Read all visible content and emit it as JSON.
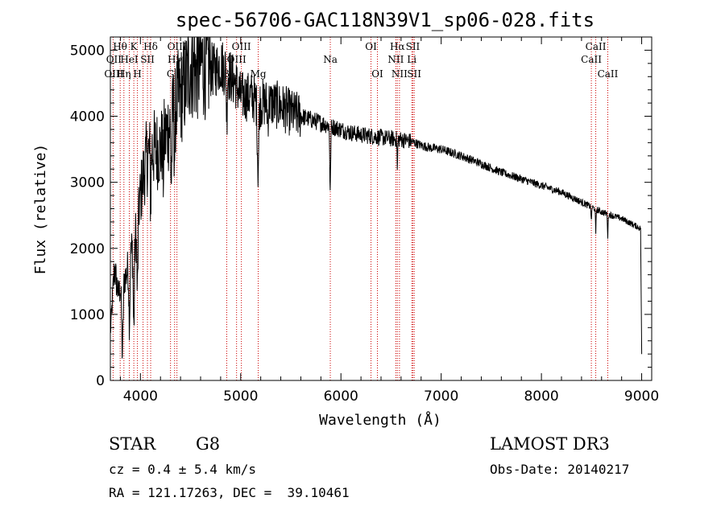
{
  "chart_data": {
    "type": "line",
    "title": "spec-56706-GAC118N39V1_sp06-028.fits",
    "xlabel": "Wavelength (Å)",
    "ylabel": "Flux (relative)",
    "xlim": [
      3700,
      9100
    ],
    "ylim": [
      0,
      5200
    ],
    "x_ticks": [
      4000,
      5000,
      6000,
      7000,
      8000,
      9000
    ],
    "y_ticks": [
      0,
      1000,
      2000,
      3000,
      4000,
      5000
    ],
    "continuum": {
      "x": [
        3700,
        3740,
        3780,
        3820,
        3860,
        3900,
        3950,
        4000,
        4050,
        4100,
        4150,
        4200,
        4250,
        4300,
        4350,
        4400,
        4450,
        4500,
        4550,
        4600,
        4650,
        4700,
        4750,
        4800,
        4850,
        4900,
        4950,
        5000,
        5100,
        5200,
        5300,
        5400,
        5500,
        5600,
        5700,
        5800,
        5900,
        6000,
        6100,
        6200,
        6300,
        6400,
        6500,
        6600,
        6700,
        6800,
        6900,
        7000,
        7200,
        7400,
        7600,
        7800,
        8000,
        8200,
        8400,
        8600,
        8800,
        8990
      ],
      "y": [
        700,
        1700,
        1300,
        1500,
        1600,
        1900,
        2200,
        2800,
        3300,
        3500,
        3500,
        3500,
        3700,
        3900,
        4200,
        4300,
        4500,
        4800,
        4700,
        4800,
        4800,
        4700,
        4700,
        4800,
        4700,
        4600,
        4500,
        4300,
        4300,
        4200,
        4200,
        4150,
        4050,
        4000,
        3950,
        3900,
        3850,
        3800,
        3750,
        3720,
        3700,
        3680,
        3660,
        3650,
        3620,
        3560,
        3520,
        3500,
        3400,
        3280,
        3150,
        3050,
        2950,
        2850,
        2700,
        2550,
        2450,
        2300
      ]
    },
    "absorption_features": [
      {
        "x": 3820,
        "depth": 1100,
        "width": 10
      },
      {
        "x": 3890,
        "depth": 900,
        "width": 8
      },
      {
        "x": 3934,
        "depth": 1300,
        "width": 8
      },
      {
        "x": 3970,
        "depth": 1100,
        "width": 8
      },
      {
        "x": 4102,
        "depth": 800,
        "width": 6
      },
      {
        "x": 4227,
        "depth": 500,
        "width": 5
      },
      {
        "x": 4308,
        "depth": 900,
        "width": 8
      },
      {
        "x": 4341,
        "depth": 700,
        "width": 6
      },
      {
        "x": 4861,
        "depth": 700,
        "width": 6
      },
      {
        "x": 5173,
        "depth": 1000,
        "width": 10
      },
      {
        "x": 5270,
        "depth": 300,
        "width": 6
      },
      {
        "x": 5893,
        "depth": 1000,
        "width": 6
      },
      {
        "x": 6563,
        "depth": 500,
        "width": 4
      },
      {
        "x": 8498,
        "depth": 250,
        "width": 4
      },
      {
        "x": 8542,
        "depth": 400,
        "width": 4
      },
      {
        "x": 8662,
        "depth": 350,
        "width": 4
      }
    ],
    "line_markers": [
      3727,
      3798,
      3835,
      3889,
      3934,
      3970,
      4026,
      4070,
      4102,
      4300,
      4341,
      4364,
      4861,
      4959,
      5007,
      5175,
      5894,
      6300,
      6364,
      6548,
      6563,
      6584,
      6707,
      6717,
      6731,
      8498,
      8542,
      8662
    ],
    "line_labels": [
      {
        "text": "Hθ",
        "x": 3797,
        "row": 1
      },
      {
        "text": "K",
        "x": 3934,
        "row": 1
      },
      {
        "text": "Hδ",
        "x": 4102,
        "row": 1
      },
      {
        "text": "OIII",
        "x": 4364,
        "row": 1
      },
      {
        "text": "OIII",
        "x": 5007,
        "row": 1
      },
      {
        "text": "OI",
        "x": 6300,
        "row": 1
      },
      {
        "text": "Hα",
        "x": 6563,
        "row": 1
      },
      {
        "text": "SII",
        "x": 6717,
        "row": 1
      },
      {
        "text": "CaII",
        "x": 8542,
        "row": 1
      },
      {
        "text": "OII",
        "x": 3735,
        "row": 2
      },
      {
        "text": "HeI",
        "x": 3889,
        "row": 2
      },
      {
        "text": "SII",
        "x": 4070,
        "row": 2
      },
      {
        "text": "Hγ",
        "x": 4341,
        "row": 2
      },
      {
        "text": "OIII",
        "x": 4959,
        "row": 2
      },
      {
        "text": "Na",
        "x": 5894,
        "row": 2
      },
      {
        "text": "NII",
        "x": 6548,
        "row": 2
      },
      {
        "text": "Li",
        "x": 6707,
        "row": 2
      },
      {
        "text": "CaII",
        "x": 8498,
        "row": 2
      },
      {
        "text": "OIII",
        "x": 3735,
        "row": 3
      },
      {
        "text": "Hη",
        "x": 3835,
        "row": 3
      },
      {
        "text": "H",
        "x": 3970,
        "row": 3
      },
      {
        "text": "G",
        "x": 4300,
        "row": 3
      },
      {
        "text": "β",
        "x": 4861,
        "row": 3
      },
      {
        "text": "Mg",
        "x": 5175,
        "row": 3
      },
      {
        "text": "OI",
        "x": 6364,
        "row": 3
      },
      {
        "text": "NII",
        "x": 6584,
        "row": 3
      },
      {
        "text": "SII",
        "x": 6731,
        "row": 3
      },
      {
        "text": "CaII",
        "x": 8662,
        "row": 3
      }
    ],
    "colors": {
      "spectrum": "#000000",
      "markers": "#cc0000",
      "axes": "#000000"
    }
  },
  "info": {
    "class": "STAR",
    "subclass": "G8",
    "survey": "LAMOST DR3",
    "cz": "cz = 0.4 ± 5.4 km/s",
    "obs_date": "Obs-Date: 20140217",
    "coords": "RA = 121.17263, DEC =  39.10461"
  }
}
